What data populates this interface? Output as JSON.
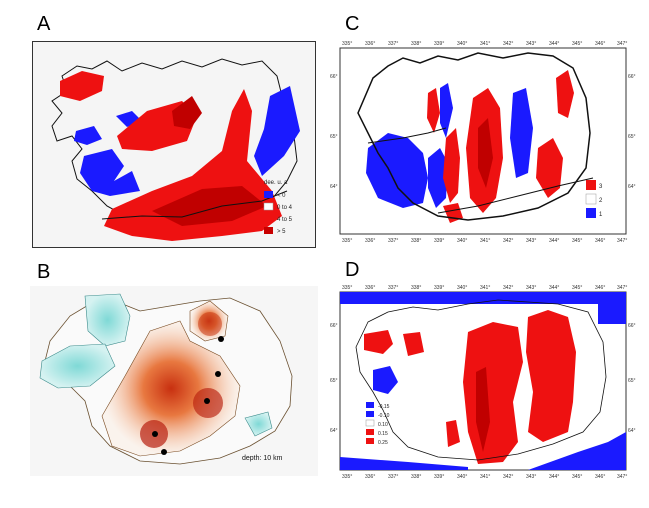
{
  "panels": {
    "a": {
      "letter": "A",
      "legend": {
        "title": "dee. u. a",
        "items": [
          {
            "label": "< 0",
            "color": "#1a1aff"
          },
          {
            "label": "0 to 4",
            "color": "#ffffff"
          },
          {
            "label": "4 to 5",
            "color": "#ee1111"
          },
          {
            "label": "> 5",
            "color": "#c80000"
          }
        ]
      }
    },
    "b": {
      "letter": "B",
      "caption": "depth: 10 km"
    },
    "c": {
      "letter": "C",
      "top_ticks": [
        "335°",
        "336°",
        "337°",
        "338°",
        "339°",
        "340°",
        "341°",
        "342°",
        "343°",
        "344°",
        "345°",
        "346°",
        "347°"
      ],
      "bottom_ticks": [
        "335°",
        "336°",
        "337°",
        "338°",
        "339°",
        "340°",
        "341°",
        "342°",
        "343°",
        "344°",
        "345°",
        "346°",
        "347°"
      ],
      "left_ticks": [
        "66°",
        "65°",
        "64°"
      ],
      "right_ticks": [
        "66°",
        "65°",
        "64°"
      ],
      "legend": [
        {
          "label": "3",
          "color": "#ee1111"
        },
        {
          "label": "2",
          "color": "#ffffff"
        },
        {
          "label": "1",
          "color": "#1a1aff"
        }
      ]
    },
    "d": {
      "letter": "D",
      "top_ticks": [
        "335°",
        "336°",
        "337°",
        "338°",
        "339°",
        "340°",
        "341°",
        "342°",
        "343°",
        "344°",
        "345°",
        "346°",
        "347°"
      ],
      "bottom_ticks": [
        "335°",
        "336°",
        "337°",
        "338°",
        "339°",
        "340°",
        "341°",
        "342°",
        "343°",
        "344°",
        "345°",
        "346°",
        "347°"
      ],
      "left_ticks": [
        "66°",
        "65°",
        "64°"
      ],
      "right_ticks": [
        "66°",
        "65°",
        "64°"
      ],
      "legend": [
        {
          "label": "-0.15",
          "color": "#1a1aff"
        },
        {
          "label": "-0.10",
          "color": "#1a1aff"
        },
        {
          "label": "0.10",
          "color": "#ffffff"
        },
        {
          "label": "0.15",
          "color": "#ee1111"
        },
        {
          "label": "0.25",
          "color": "#ee1111"
        }
      ]
    }
  },
  "colors": {
    "red": "#ee1111",
    "dark_red": "#c00000",
    "blue": "#1a1aff",
    "cyan": "#9be0e0",
    "orange": "#f0a060"
  }
}
